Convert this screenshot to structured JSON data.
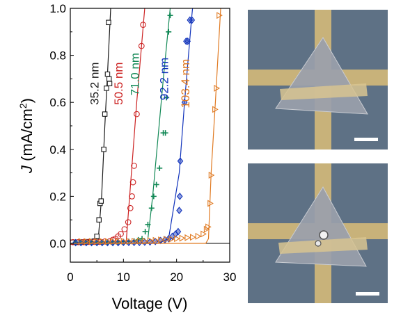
{
  "chart_data": {
    "type": "scatter",
    "title": "",
    "xlabel": "Voltage (V)",
    "ylabel_italic": "J",
    "ylabel_rest": " (mA/cm",
    "ylabel_sup": "2",
    "ylabel_close": ")",
    "xlim": [
      0,
      30
    ],
    "ylim": [
      -0.08,
      1.0
    ],
    "xticks": [
      0,
      10,
      20,
      30
    ],
    "xtick_labels": [
      "0",
      "10",
      "20",
      "30"
    ],
    "yticks": [
      0.0,
      0.2,
      0.4,
      0.6,
      0.8,
      1.0
    ],
    "ytick_labels": [
      "0.0",
      "0.2",
      "0.4",
      "0.6",
      "0.8",
      "1.0"
    ],
    "grid": false,
    "legend": "labels rotated beside each curve",
    "series": [
      {
        "name": "35.2 nm",
        "color": "#1a1a1a",
        "marker": "square",
        "fit": [
          [
            0,
            0.0
          ],
          [
            5.2,
            0.0
          ],
          [
            5.9,
            0.2
          ],
          [
            6.5,
            0.5
          ],
          [
            7.0,
            0.72
          ],
          [
            7.6,
            1.0
          ]
        ],
        "points": [
          [
            0.3,
            0.005
          ],
          [
            1.2,
            0.005
          ],
          [
            2.1,
            0.006
          ],
          [
            3.0,
            0.007
          ],
          [
            3.9,
            0.008
          ],
          [
            4.6,
            0.01
          ],
          [
            5.0,
            0.03
          ],
          [
            5.4,
            0.1
          ],
          [
            5.6,
            0.17
          ],
          [
            5.8,
            0.18
          ],
          [
            6.3,
            0.4
          ],
          [
            6.5,
            0.55
          ],
          [
            6.8,
            0.66
          ],
          [
            7.0,
            0.72
          ],
          [
            7.3,
            0.7
          ],
          [
            7.4,
            0.68
          ],
          [
            7.2,
            0.94
          ]
        ]
      },
      {
        "name": "50.5 nm",
        "color": "#cc2222",
        "marker": "circle",
        "fit": [
          [
            0,
            0.0
          ],
          [
            10.5,
            0.0
          ],
          [
            11.5,
            0.3
          ],
          [
            12.5,
            0.6
          ],
          [
            13.4,
            0.84
          ],
          [
            14.0,
            1.0
          ]
        ],
        "points": [
          [
            0.5,
            0.005
          ],
          [
            1.5,
            0.005
          ],
          [
            2.5,
            0.005
          ],
          [
            3.5,
            0.006
          ],
          [
            4.5,
            0.006
          ],
          [
            5.5,
            0.006
          ],
          [
            6.5,
            0.008
          ],
          [
            7.5,
            0.01
          ],
          [
            8.0,
            0.015
          ],
          [
            8.5,
            0.02
          ],
          [
            9.0,
            0.03
          ],
          [
            9.5,
            0.04
          ],
          [
            10.2,
            0.06
          ],
          [
            10.9,
            0.09
          ],
          [
            11.3,
            0.15
          ],
          [
            11.6,
            0.2
          ],
          [
            11.8,
            0.26
          ],
          [
            12.0,
            0.33
          ],
          [
            12.5,
            0.55
          ],
          [
            13.4,
            0.84
          ],
          [
            13.7,
            0.93
          ]
        ]
      },
      {
        "name": "71.0 nm",
        "color": "#118855",
        "marker": "plus",
        "fit": [
          [
            0,
            0.0
          ],
          [
            14.5,
            0.0
          ],
          [
            15.5,
            0.2
          ],
          [
            16.5,
            0.45
          ],
          [
            17.5,
            0.7
          ],
          [
            18.8,
            1.0
          ]
        ],
        "points": [
          [
            1,
            0.005
          ],
          [
            2,
            0.005
          ],
          [
            3,
            0.005
          ],
          [
            4,
            0.005
          ],
          [
            5,
            0.005
          ],
          [
            6,
            0.005
          ],
          [
            7,
            0.005
          ],
          [
            8,
            0.006
          ],
          [
            9,
            0.006
          ],
          [
            10,
            0.007
          ],
          [
            11,
            0.008
          ],
          [
            12,
            0.01
          ],
          [
            12.8,
            0.015
          ],
          [
            13.5,
            0.02
          ],
          [
            14.1,
            0.05
          ],
          [
            14.6,
            0.08
          ],
          [
            15.3,
            0.15
          ],
          [
            15.7,
            0.2
          ],
          [
            16.2,
            0.25
          ],
          [
            16.8,
            0.32
          ],
          [
            17.5,
            0.47
          ],
          [
            17.9,
            0.47
          ],
          [
            18.1,
            0.62
          ],
          [
            18.5,
            0.9
          ],
          [
            18.8,
            0.97
          ]
        ]
      },
      {
        "name": "92.2 nm",
        "color": "#1133bb",
        "marker": "diamond",
        "fit": [
          [
            0,
            0.0
          ],
          [
            16.5,
            0.0
          ],
          [
            18.5,
            0.02
          ],
          [
            20.5,
            0.3
          ],
          [
            21.5,
            0.6
          ],
          [
            22.8,
            0.95
          ],
          [
            23.0,
            1.0
          ]
        ],
        "points": [
          [
            1,
            0.003
          ],
          [
            2,
            0.003
          ],
          [
            3,
            0.003
          ],
          [
            4,
            0.003
          ],
          [
            5,
            0.003
          ],
          [
            6,
            0.003
          ],
          [
            7,
            0.003
          ],
          [
            8,
            0.003
          ],
          [
            9,
            0.003
          ],
          [
            10,
            0.004
          ],
          [
            11,
            0.004
          ],
          [
            12,
            0.004
          ],
          [
            13,
            0.004
          ],
          [
            14,
            0.005
          ],
          [
            15,
            0.006
          ],
          [
            16,
            0.008
          ],
          [
            17,
            0.012
          ],
          [
            17.8,
            0.015
          ],
          [
            18.5,
            0.02
          ],
          [
            19.2,
            0.03
          ],
          [
            19.8,
            0.04
          ],
          [
            20.3,
            0.05
          ],
          [
            20.5,
            0.14
          ],
          [
            20.6,
            0.2
          ],
          [
            20.7,
            0.35
          ],
          [
            21.5,
            0.6
          ],
          [
            21.8,
            0.86
          ],
          [
            22.1,
            0.86
          ],
          [
            22.5,
            0.95
          ],
          [
            22.9,
            0.95
          ]
        ]
      },
      {
        "name": "103.4 nm",
        "color": "#e07a22",
        "marker": "triangle-right",
        "fit": [
          [
            0,
            0.0
          ],
          [
            25.5,
            0.0
          ],
          [
            26.0,
            0.02
          ],
          [
            26.5,
            0.3
          ],
          [
            27.3,
            0.6
          ],
          [
            28.3,
            1.0
          ]
        ],
        "points": [
          [
            2,
            0.008
          ],
          [
            3,
            0.008
          ],
          [
            4,
            0.008
          ],
          [
            5,
            0.008
          ],
          [
            6,
            0.008
          ],
          [
            7,
            0.008
          ],
          [
            8,
            0.008
          ],
          [
            9,
            0.008
          ],
          [
            10,
            0.009
          ],
          [
            11,
            0.009
          ],
          [
            12,
            0.009
          ],
          [
            13,
            0.01
          ],
          [
            14,
            0.01
          ],
          [
            15,
            0.012
          ],
          [
            16,
            0.013
          ],
          [
            17,
            0.015
          ],
          [
            18,
            0.017
          ],
          [
            19,
            0.018
          ],
          [
            20,
            0.02
          ],
          [
            21,
            0.022
          ],
          [
            22,
            0.024
          ],
          [
            23,
            0.026
          ],
          [
            24,
            0.03
          ],
          [
            25,
            0.04
          ],
          [
            25.6,
            0.06
          ],
          [
            25.9,
            0.07
          ],
          [
            26.3,
            0.17
          ],
          [
            26.5,
            0.29
          ],
          [
            27.2,
            0.57
          ],
          [
            27.5,
            0.66
          ],
          [
            28.0,
            0.97
          ]
        ]
      }
    ]
  },
  "images": {
    "top": {
      "scale_bar": "white scale bar"
    },
    "bottom": {
      "scale_bar": "white scale bar"
    },
    "colors": {
      "substrate": "#5e7185",
      "electrode": "#c8b27a",
      "flake": "#9aa0ab"
    }
  }
}
